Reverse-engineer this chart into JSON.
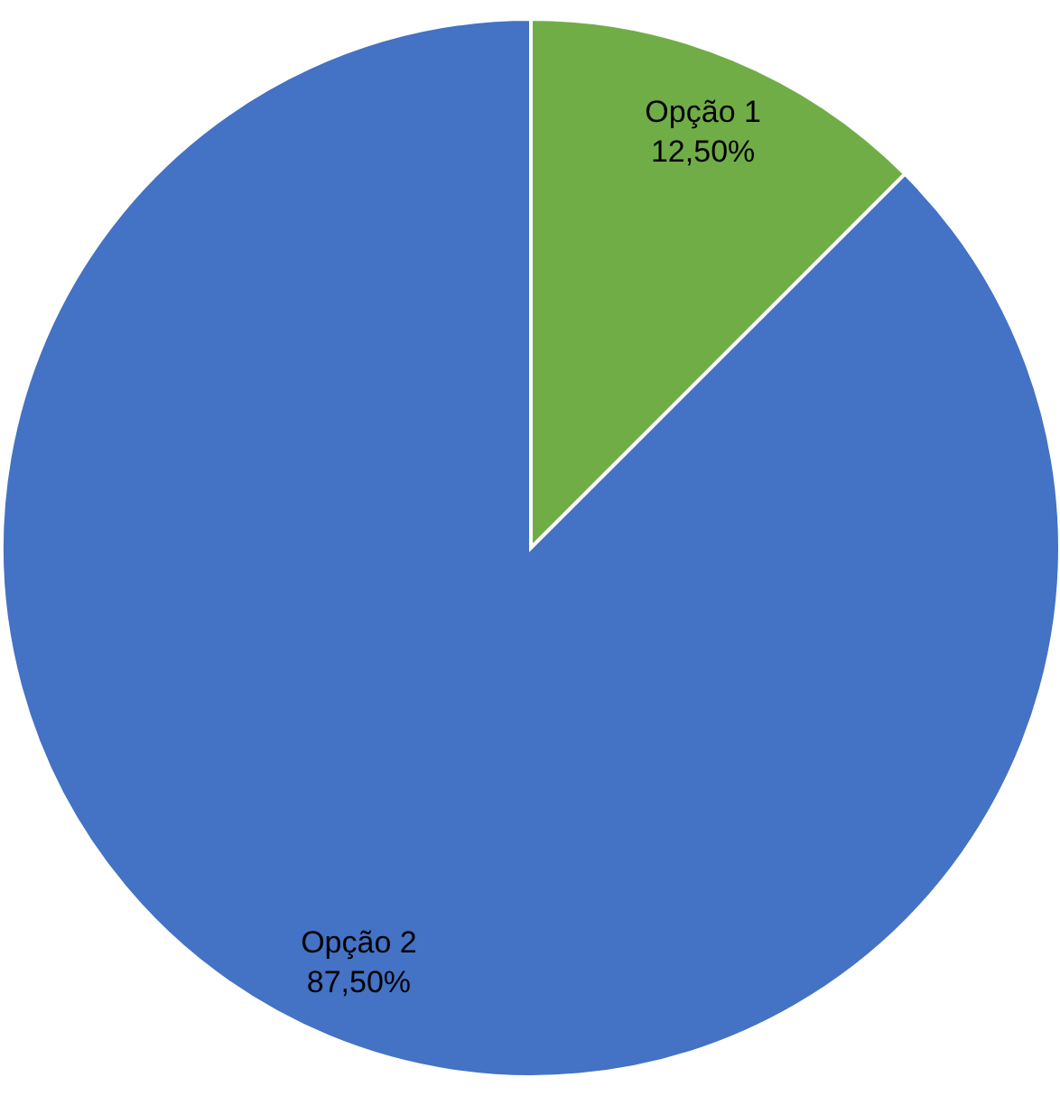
{
  "chart_data": {
    "type": "pie",
    "categories": [
      "Opção 1",
      "Opção 2"
    ],
    "values": [
      12.5,
      87.5
    ],
    "colors": [
      "#70ad47",
      "#4472c4"
    ],
    "value_labels": [
      "12,50%",
      "87,50%"
    ]
  }
}
